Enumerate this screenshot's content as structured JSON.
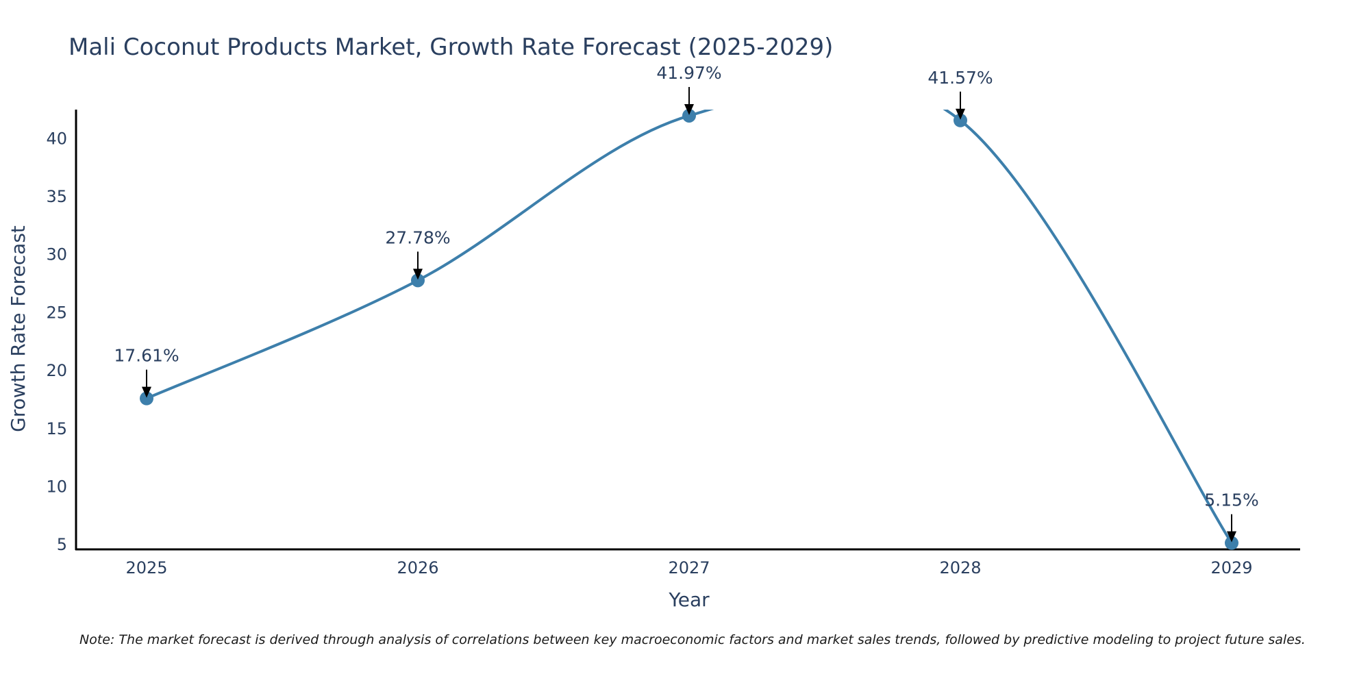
{
  "chart_data": {
    "type": "line",
    "title": "Mali Coconut Products Market, Growth Rate Forecast (2025-2029)",
    "xlabel": "Year",
    "ylabel": "Growth Rate Forecast",
    "categories": [
      "2025",
      "2026",
      "2027",
      "2028",
      "2029"
    ],
    "series": [
      {
        "name": "Growth Rate Forecast",
        "values": [
          17.61,
          27.78,
          41.97,
          41.57,
          5.15
        ],
        "labels": [
          "17.61%",
          "27.78%",
          "41.97%",
          "41.57%",
          "5.15%"
        ]
      }
    ],
    "yticks": [
      "5",
      "10",
      "15",
      "20",
      "25",
      "30",
      "35",
      "40"
    ],
    "ylim": [
      4.6,
      42.5
    ],
    "grid": false,
    "legend": "none",
    "line_color": "#3d7fab",
    "note": "Note: The market forecast is derived through analysis of correlations between key macroeconomic factors and market sales trends, followed by predictive modeling to project future sales."
  }
}
